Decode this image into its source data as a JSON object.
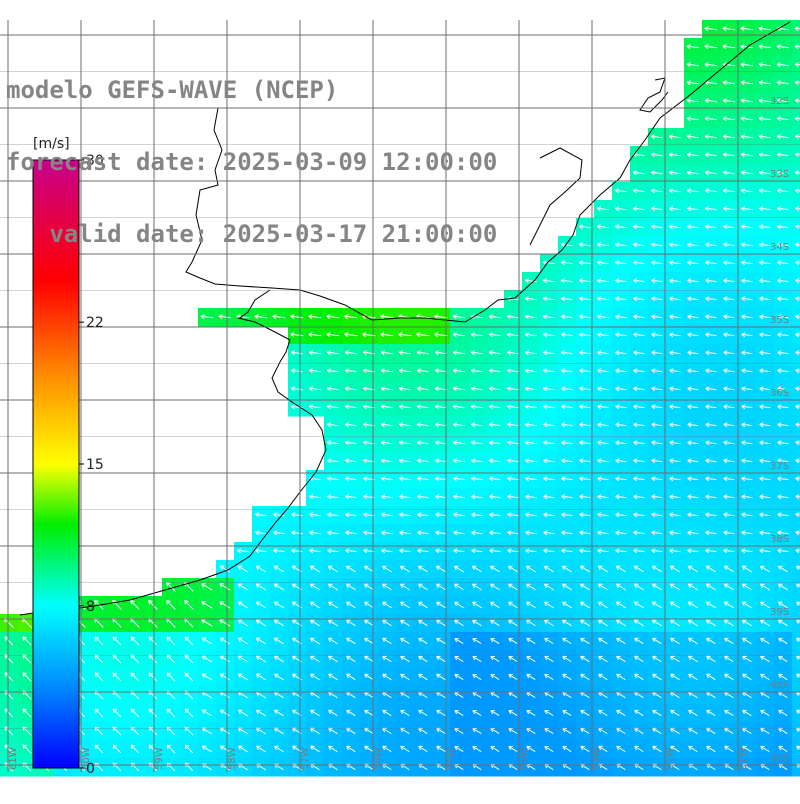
{
  "title": {
    "line1": "modelo GEFS-WAVE (NCEP)",
    "line2": "forecast date: 2025-03-09 12:00:00",
    "line3": "   valid date: 2025-03-17 21:00:00"
  },
  "colorbar": {
    "unit": "[m/s]",
    "ticks": [
      {
        "value": 30,
        "label": "30"
      },
      {
        "value": 22,
        "label": "22"
      },
      {
        "value": 15,
        "label": "15"
      },
      {
        "value": 8,
        "label": "8"
      },
      {
        "value": 0,
        "label": "0"
      }
    ],
    "vmin": 0,
    "vmax": 30
  },
  "grid": {
    "lat_labels": [
      "32S",
      "33S",
      "34S",
      "35S",
      "36S",
      "37S",
      "38S",
      "39S",
      "40S",
      "41S"
    ],
    "lon_labels": [
      "61W",
      "60W",
      "59W",
      "58W",
      "57W",
      "56W",
      "55W",
      "54W",
      "53W",
      "52W",
      "51W"
    ]
  },
  "chart_data": {
    "type": "heatmap",
    "variable": "wind speed",
    "unit": "m/s",
    "lon_range": [
      -61,
      -50.1
    ],
    "lat_range": [
      -41.4,
      -30.6
    ],
    "wind_direction": "southwestward flow over the ocean",
    "speed_range_ocean": [
      5,
      12
    ]
  }
}
